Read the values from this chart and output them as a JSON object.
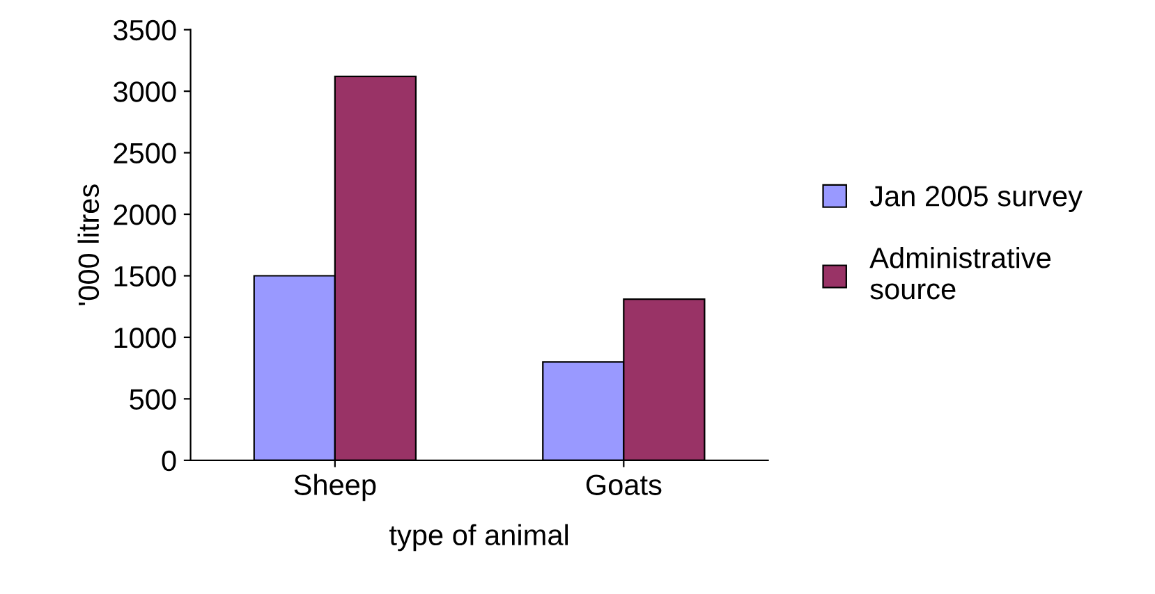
{
  "chart_data": {
    "type": "bar",
    "xlabel": "type of animal",
    "ylabel": "'000 litres",
    "categories": [
      "Sheep",
      "Goats"
    ],
    "series": [
      {
        "name": "Jan 2005 survey",
        "color": "#9999ff",
        "values": [
          1500,
          800
        ]
      },
      {
        "name": "Administrative\nsource",
        "color": "#993366",
        "values": [
          3120,
          1310
        ]
      }
    ],
    "ylim": [
      0,
      3500
    ],
    "yticks": [
      0,
      500,
      1000,
      1500,
      2000,
      2500,
      3000,
      3500
    ],
    "grid": false,
    "legend": "right"
  }
}
